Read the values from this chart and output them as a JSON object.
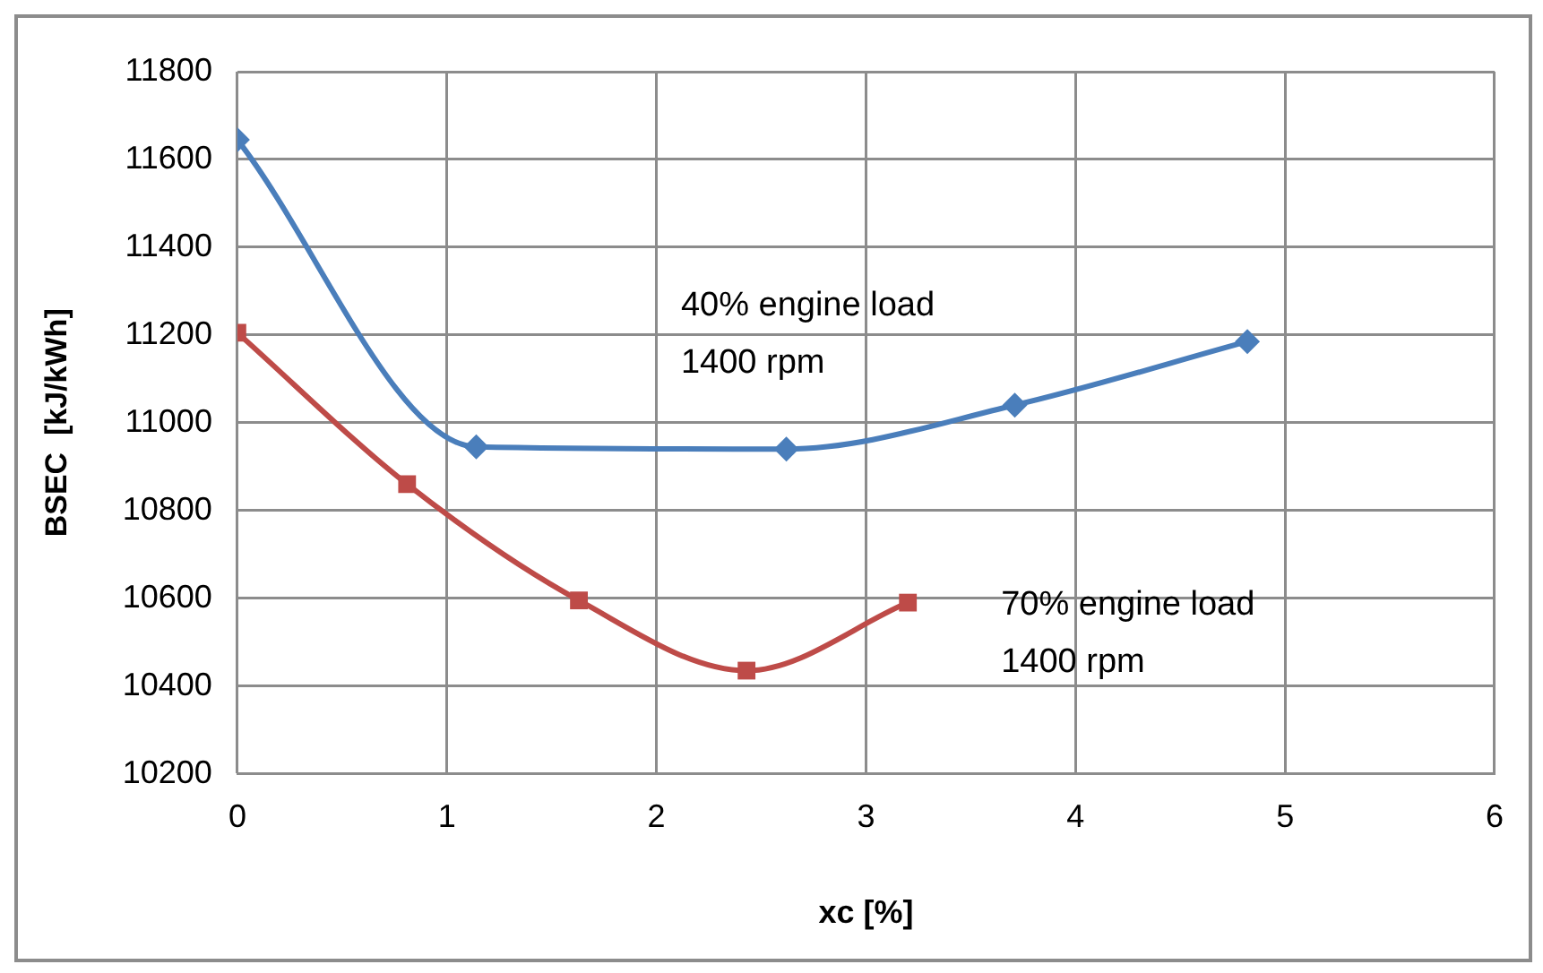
{
  "chart_data": {
    "type": "line",
    "xlabel": "xc [%]",
    "ylabel": "BSEC  [kJ/kWh]",
    "xlim": [
      0,
      6
    ],
    "xticks": [
      0,
      1,
      2,
      3,
      4,
      5,
      6
    ],
    "ylim": [
      10200,
      11800
    ],
    "yticks": [
      10200,
      10400,
      10600,
      10800,
      11000,
      11200,
      11400,
      11600,
      11800
    ],
    "grid": true,
    "legend": false,
    "series": [
      {
        "name": "40% engine load\n1400 rpm",
        "color": "#4a7ebb",
        "marker": "diamond",
        "x": [
          0,
          1.14,
          2.62,
          3.71,
          4.82
        ],
        "values": [
          11645,
          10945,
          10940,
          11040,
          11185
        ]
      },
      {
        "name": "70% engine load\n1400 rpm",
        "color": "#be4b48",
        "marker": "square",
        "x": [
          0,
          0.81,
          1.63,
          2.43,
          3.2
        ],
        "values": [
          11205,
          10860,
          10595,
          10435,
          10590
        ]
      }
    ]
  }
}
